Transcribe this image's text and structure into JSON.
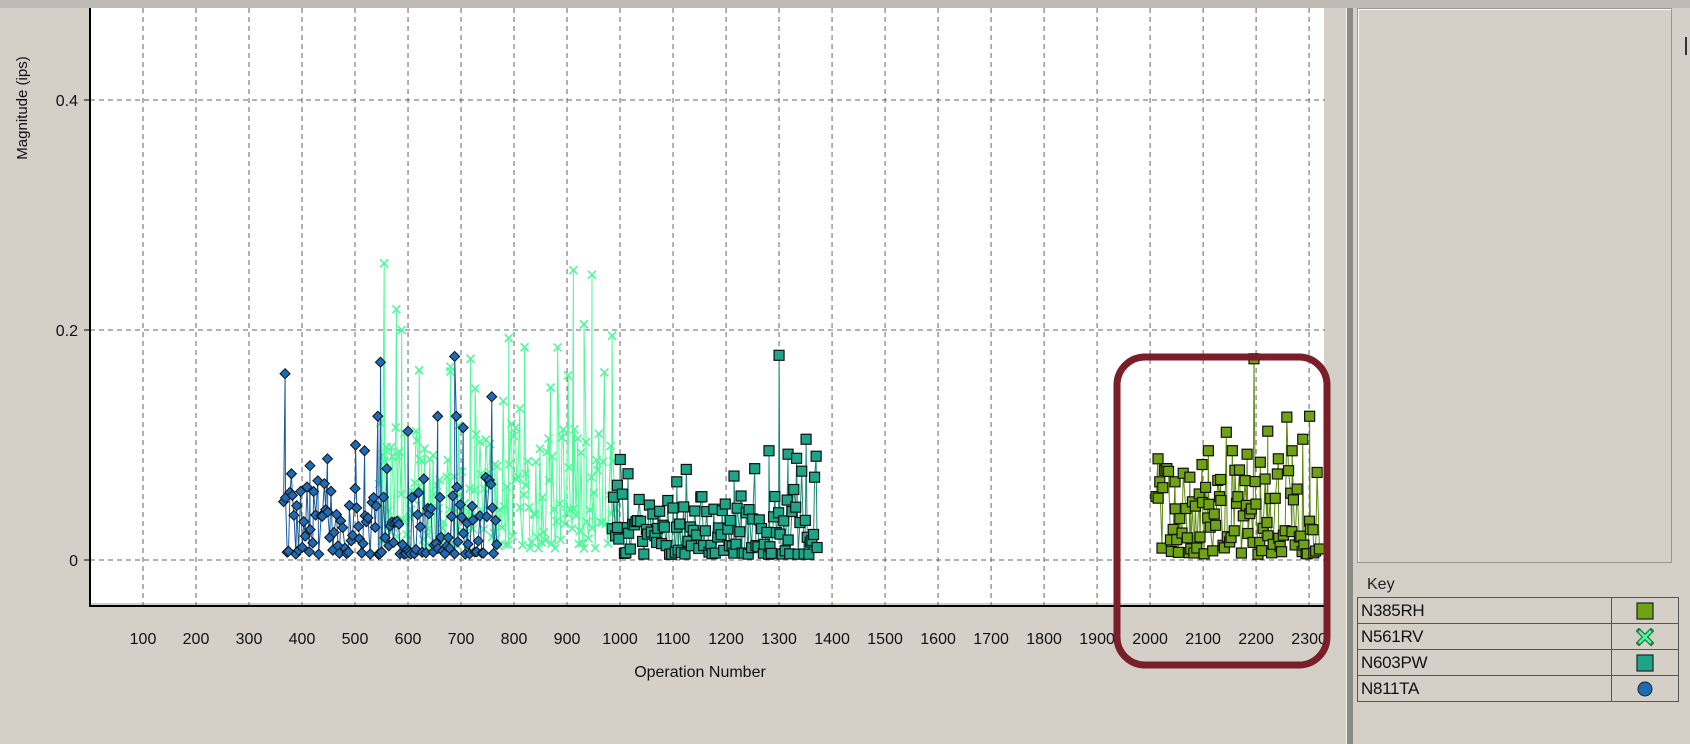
{
  "chart_data": {
    "type": "scatter",
    "ylabel": "Magnitude (ips)",
    "xlabel": "Operation Number",
    "xlim": [
      0,
      2330
    ],
    "ylim": [
      -0.04,
      0.48
    ],
    "x_ticks": [
      100,
      200,
      300,
      400,
      500,
      600,
      700,
      800,
      900,
      1000,
      1100,
      1200,
      1300,
      1400,
      1500,
      1600,
      1700,
      1800,
      1900,
      2000,
      2100,
      2200,
      2300
    ],
    "y_ticks": [
      0,
      0.2,
      0.4
    ],
    "grid": true,
    "legend_placement": "right panel",
    "series": [
      {
        "name": "N385RH",
        "marker": "square",
        "color": "#6fa214",
        "x_range": [
          2012,
          2322
        ],
        "typical_range": [
          0.005,
          0.08
        ],
        "points": [
          [
            2015,
            0.088
          ],
          [
            2028,
            0.078
          ],
          [
            2047,
            0.068
          ],
          [
            2075,
            0.072
          ],
          [
            2098,
            0.083
          ],
          [
            2110,
            0.095
          ],
          [
            2133,
            0.07
          ],
          [
            2160,
            0.078
          ],
          [
            2183,
            0.092
          ],
          [
            2196,
            0.175
          ],
          [
            2208,
            0.085
          ],
          [
            2222,
            0.112
          ],
          [
            2242,
            0.088
          ],
          [
            2268,
            0.095
          ],
          [
            2288,
            0.105
          ],
          [
            2301,
            0.125
          ]
        ]
      },
      {
        "name": "N561RV",
        "marker": "x",
        "color": "#52f79b",
        "x_range": [
          545,
          1000
        ],
        "typical_range": [
          0.01,
          0.12
        ],
        "points": [
          [
            555,
            0.258
          ],
          [
            578,
            0.218
          ],
          [
            588,
            0.2
          ],
          [
            621,
            0.165
          ],
          [
            680,
            0.168
          ],
          [
            718,
            0.175
          ],
          [
            790,
            0.193
          ],
          [
            820,
            0.185
          ],
          [
            869,
            0.15
          ],
          [
            912,
            0.252
          ],
          [
            947,
            0.248
          ],
          [
            932,
            0.205
          ],
          [
            985,
            0.195
          ]
        ]
      },
      {
        "name": "N603PW",
        "marker": "square",
        "color": "#1ea486",
        "x_range": [
          985,
          1375
        ],
        "typical_range": [
          0.005,
          0.06
        ],
        "points": [
          [
            995,
            0.065
          ],
          [
            1015,
            0.075
          ],
          [
            1107,
            0.068
          ],
          [
            1215,
            0.073
          ],
          [
            1281,
            0.095
          ],
          [
            1300,
            0.178
          ],
          [
            1317,
            0.092
          ],
          [
            1351,
            0.105
          ],
          [
            1367,
            0.072
          ]
        ]
      },
      {
        "name": "N811TA",
        "marker": "circle",
        "color": "#1d6bb6",
        "x_range": [
          365,
          770
        ],
        "typical_range": [
          0.005,
          0.07
        ],
        "points": [
          [
            368,
            0.162
          ],
          [
            380,
            0.075
          ],
          [
            415,
            0.082
          ],
          [
            448,
            0.088
          ],
          [
            501,
            0.1
          ],
          [
            518,
            0.095
          ],
          [
            543,
            0.125
          ],
          [
            548,
            0.172
          ],
          [
            600,
            0.112
          ],
          [
            656,
            0.125
          ],
          [
            691,
            0.125
          ],
          [
            688,
            0.177
          ],
          [
            704,
            0.115
          ],
          [
            758,
            0.142
          ]
        ]
      }
    ]
  },
  "key": {
    "title": "Key",
    "items": [
      {
        "label": "N385RH",
        "marker": "square",
        "color": "#6fa214"
      },
      {
        "label": "N561RV",
        "marker": "x",
        "color": "#52f79b"
      },
      {
        "label": "N603PW",
        "marker": "square",
        "color": "#1ea486"
      },
      {
        "label": "N811TA",
        "marker": "circle",
        "color": "#1d6bb6"
      }
    ]
  },
  "highlight_color": "#7a1e2a"
}
